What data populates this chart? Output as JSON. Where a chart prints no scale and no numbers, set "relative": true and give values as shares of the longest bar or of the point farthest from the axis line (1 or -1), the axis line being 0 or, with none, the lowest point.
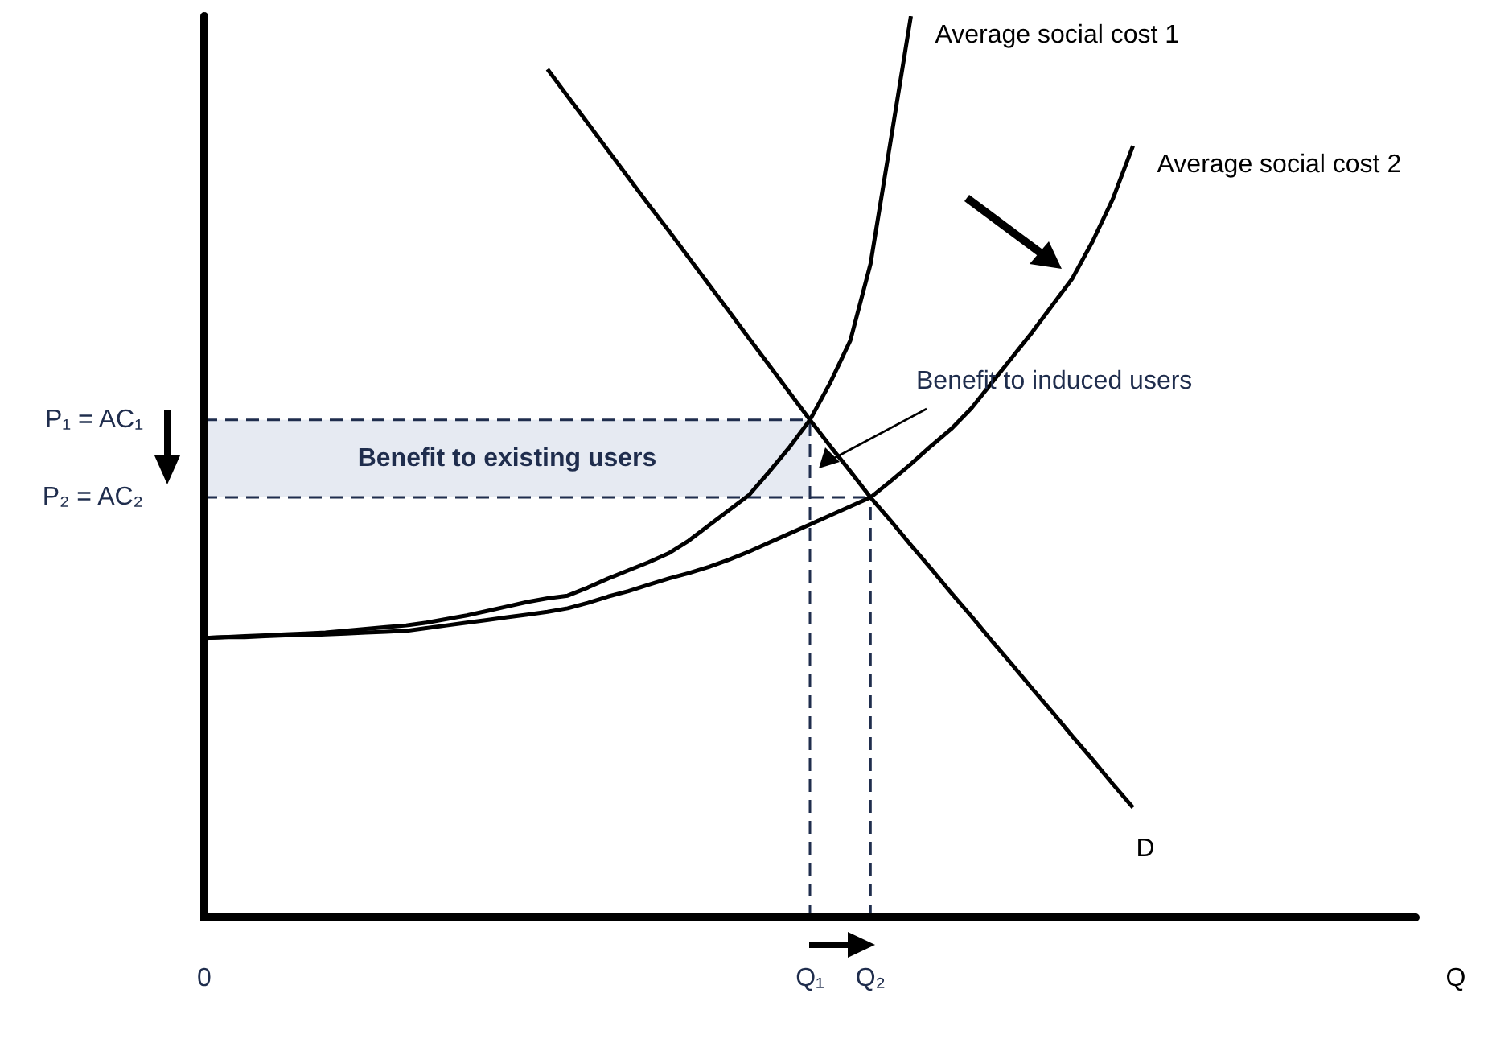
{
  "chart_data": {
    "type": "line",
    "relative": true,
    "xlabel": "Q",
    "legend": false,
    "marker": "none",
    "line_style": "solid",
    "categories": [
      "0",
      null,
      null,
      null,
      null,
      null,
      null,
      null,
      null,
      null,
      null,
      null,
      null,
      null,
      null,
      null,
      null,
      null,
      null,
      null,
      null,
      null,
      null,
      null,
      null,
      null,
      null,
      null,
      null,
      null,
      "Q₁",
      null,
      null,
      "Q₂",
      null,
      null,
      null,
      null,
      null,
      null,
      null,
      null,
      null,
      null,
      null,
      null,
      null,
      null,
      null,
      null,
      null,
      null,
      null,
      null,
      null,
      null,
      null,
      null,
      null,
      null,
      null
    ],
    "series": [
      {
        "name": "Average social cost 1",
        "color": "#000000",
        "values": [
          0.31,
          0.311,
          0.312,
          0.313,
          0.314,
          0.315,
          0.316,
          0.318,
          0.32,
          0.322,
          0.324,
          0.327,
          0.331,
          0.335,
          0.34,
          0.345,
          0.35,
          0.354,
          0.357,
          0.366,
          0.376,
          0.385,
          0.394,
          0.404,
          0.418,
          0.435,
          0.452,
          0.469,
          0.495,
          0.522,
          0.552,
          0.593,
          0.64,
          0.725,
          0.862,
          1,
          null,
          null,
          null,
          null,
          null,
          null,
          null,
          null,
          null,
          null,
          null,
          null,
          null,
          null,
          null,
          null,
          null,
          null,
          null,
          null,
          null,
          null,
          null,
          null,
          null
        ]
      },
      {
        "name": "Average social cost 2",
        "color": "#000000",
        "values": [
          0.31,
          0.311,
          0.311,
          0.312,
          0.313,
          0.313,
          0.314,
          0.315,
          0.316,
          0.317,
          0.318,
          0.321,
          0.324,
          0.327,
          0.33,
          0.333,
          0.336,
          0.339,
          0.343,
          0.349,
          0.356,
          0.362,
          0.369,
          0.376,
          0.382,
          0.389,
          0.397,
          0.406,
          0.416,
          0.426,
          0.436,
          0.446,
          0.456,
          0.466,
          0.484,
          0.503,
          0.523,
          0.542,
          0.565,
          0.593,
          0.621,
          0.649,
          0.679,
          0.709,
          0.75,
          0.797,
          0.856,
          null,
          null,
          null,
          null,
          null,
          null,
          null,
          null,
          null,
          null,
          null,
          null,
          null,
          null
        ]
      },
      {
        "name": "D",
        "color": "#000000",
        "values": [
          null,
          null,
          null,
          null,
          null,
          null,
          null,
          null,
          null,
          null,
          null,
          null,
          null,
          null,
          null,
          null,
          null,
          0.941,
          0.911,
          0.881,
          0.851,
          0.821,
          0.791,
          0.762,
          0.732,
          0.702,
          0.672,
          0.642,
          0.612,
          0.582,
          0.552,
          0.523,
          0.495,
          0.466,
          0.44,
          0.413,
          0.387,
          0.36,
          0.334,
          0.307,
          0.281,
          0.254,
          0.228,
          0.201,
          0.175,
          0.148,
          0.122,
          null,
          null,
          null,
          null,
          null,
          null,
          null,
          null,
          null,
          null,
          null,
          null,
          null,
          null
        ]
      }
    ],
    "ref_lines": [
      {
        "axis": "y",
        "value": 0.552,
        "label": "P₁ = AC₁",
        "line_style": "dashed",
        "color": "#1f2d4d"
      },
      {
        "axis": "y",
        "value": 0.466,
        "label": "P₂ = AC₂",
        "line_style": "dashed",
        "color": "#1f2d4d"
      },
      {
        "axis": "x",
        "value": "Q₁",
        "line_style": "dashed",
        "color": "#1f2d4d"
      },
      {
        "axis": "x",
        "value": "Q₂",
        "line_style": "dashed",
        "color": "#1f2d4d"
      }
    ],
    "bands": [
      {
        "axis": "y",
        "from": 0.466,
        "to": 0.552,
        "label": "Benefit to existing users",
        "color": "#e6eaf2"
      }
    ],
    "annotations": [
      "Benefit to induced users"
    ]
  }
}
